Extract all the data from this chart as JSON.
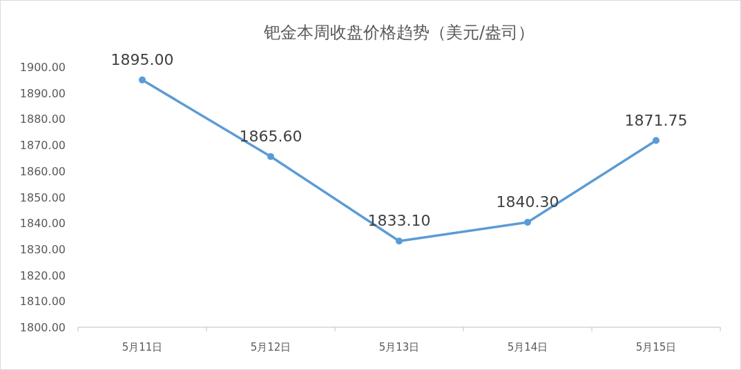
{
  "chart_data": {
    "type": "line",
    "title": "钯金本周收盘价格趋势（美元/盎司）",
    "categories": [
      "5月11日",
      "5月12日",
      "5月13日",
      "5月14日",
      "5月15日"
    ],
    "series": [
      {
        "color": "#5b9bd5",
        "values": [
          1895.0,
          1865.6,
          1833.1,
          1840.3,
          1871.75
        ]
      }
    ],
    "value_labels": [
      "1895.00",
      "1865.60",
      "1833.10",
      "1840.30",
      "1871.75"
    ],
    "ylim": [
      1800,
      1900
    ],
    "yticks": [
      {
        "value": 1800,
        "label": "1800.00"
      },
      {
        "value": 1810,
        "label": "1810.00"
      },
      {
        "value": 1820,
        "label": "1820.00"
      },
      {
        "value": 1830,
        "label": "1830.00"
      },
      {
        "value": 1840,
        "label": "1840.00"
      },
      {
        "value": 1850,
        "label": "1850.00"
      },
      {
        "value": 1860,
        "label": "1860.00"
      },
      {
        "value": 1870,
        "label": "1870.00"
      },
      {
        "value": 1880,
        "label": "1880.00"
      },
      {
        "value": 1890,
        "label": "1890.00"
      },
      {
        "value": 1900,
        "label": "1900.00"
      }
    ],
    "marker": "circle",
    "line_style": "solid",
    "grid": false
  }
}
